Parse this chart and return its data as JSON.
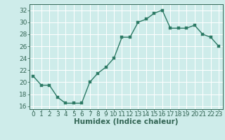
{
  "x": [
    0,
    1,
    2,
    3,
    4,
    5,
    6,
    7,
    8,
    9,
    10,
    11,
    12,
    13,
    14,
    15,
    16,
    17,
    18,
    19,
    20,
    21,
    22,
    23
  ],
  "y": [
    21.0,
    19.5,
    19.5,
    17.5,
    16.5,
    16.5,
    16.5,
    20.0,
    21.5,
    22.5,
    24.0,
    27.5,
    27.5,
    30.0,
    30.5,
    31.5,
    32.0,
    29.0,
    29.0,
    29.0,
    29.5,
    28.0,
    27.5,
    26.0
  ],
  "xlim": [
    -0.5,
    23.5
  ],
  "ylim": [
    15.5,
    33.0
  ],
  "yticks": [
    16,
    18,
    20,
    22,
    24,
    26,
    28,
    30,
    32
  ],
  "xticks": [
    0,
    1,
    2,
    3,
    4,
    5,
    6,
    7,
    8,
    9,
    10,
    11,
    12,
    13,
    14,
    15,
    16,
    17,
    18,
    19,
    20,
    21,
    22,
    23
  ],
  "xlabel": "Humidex (Indice chaleur)",
  "line_color": "#2d7a65",
  "marker_color": "#2d7a65",
  "bg_color": "#ceecea",
  "grid_color": "#ffffff",
  "axis_color": "#336655",
  "tick_label_fontsize": 6.5,
  "xlabel_fontsize": 7.5,
  "line_width": 1.0,
  "marker_size": 2.5
}
